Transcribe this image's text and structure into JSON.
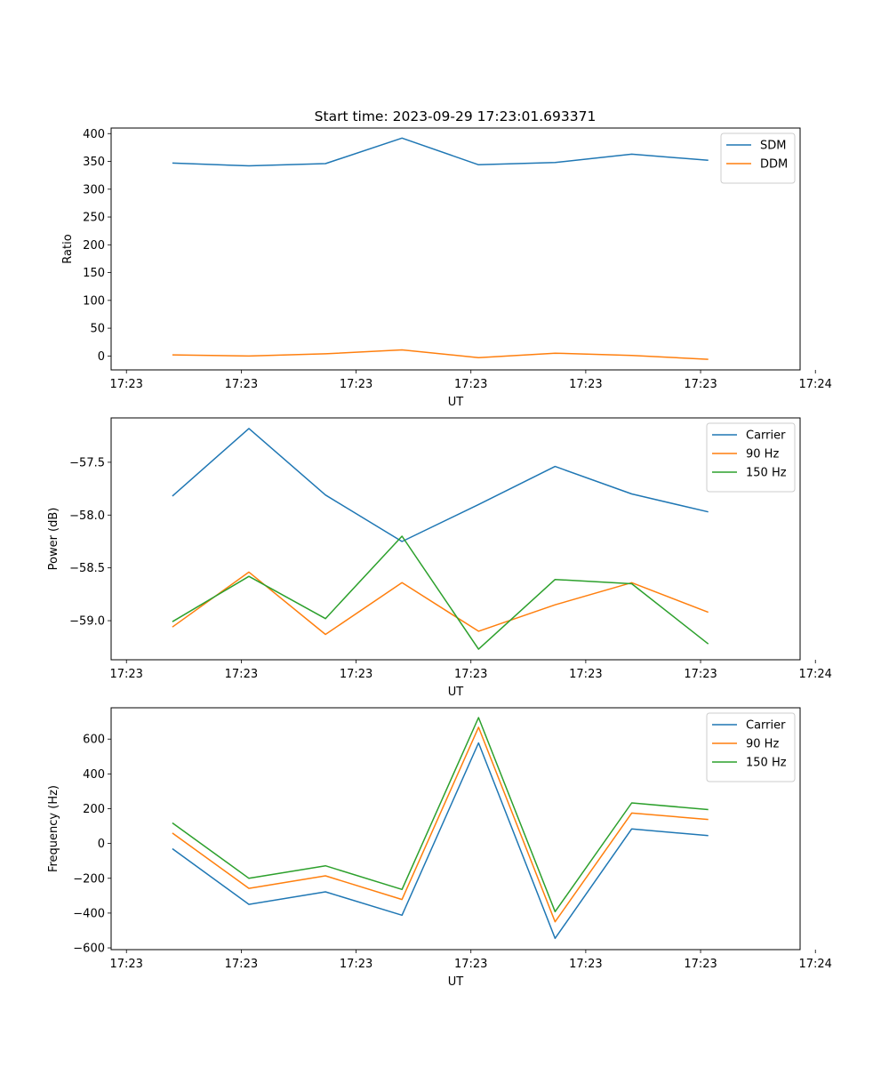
{
  "figure_title": "Start time: 2023-09-29 17:23:01.693371",
  "chart_data": [
    {
      "type": "line",
      "title": "Start time: 2023-09-29 17:23:01.693371",
      "xlabel": "UT",
      "ylabel": "Ratio",
      "x": [
        1,
        2,
        3,
        4,
        5,
        6,
        7,
        8
      ],
      "xlim": [
        0.2,
        9.2
      ],
      "x_ticks": [
        0.4,
        1.9,
        3.4,
        4.9,
        6.4,
        7.9,
        9.4
      ],
      "x_tick_labels": [
        "17:23",
        "17:23",
        "17:23",
        "17:23",
        "17:23",
        "17:23",
        "17:24"
      ],
      "ylim": [
        -25,
        410
      ],
      "y_ticks": [
        0,
        50,
        100,
        150,
        200,
        250,
        300,
        350,
        400
      ],
      "y_tick_labels": [
        "0",
        "50",
        "100",
        "150",
        "200",
        "250",
        "300",
        "350",
        "400"
      ],
      "legend_position": "top-right",
      "series": [
        {
          "name": "SDM",
          "color": "#1f77b4",
          "values": [
            347,
            342,
            346,
            392,
            344,
            348,
            363,
            352
          ]
        },
        {
          "name": "DDM",
          "color": "#ff7f0e",
          "values": [
            2,
            0,
            4,
            11,
            -3,
            5,
            1,
            -6
          ]
        }
      ]
    },
    {
      "type": "line",
      "xlabel": "UT",
      "ylabel": "Power (dB)",
      "x": [
        1,
        2,
        3,
        4,
        5,
        6,
        7,
        8
      ],
      "xlim": [
        0.2,
        9.2
      ],
      "x_ticks": [
        0.4,
        1.9,
        3.4,
        4.9,
        6.4,
        7.9,
        9.4
      ],
      "x_tick_labels": [
        "17:23",
        "17:23",
        "17:23",
        "17:23",
        "17:23",
        "17:23",
        "17:24"
      ],
      "ylim": [
        -59.37,
        -57.08
      ],
      "y_ticks": [
        -59.0,
        -58.5,
        -58.0,
        -57.5
      ],
      "y_tick_labels": [
        "−59.0",
        "−58.5",
        "−58.0",
        "−57.5"
      ],
      "legend_position": "top-right",
      "series": [
        {
          "name": "Carrier",
          "color": "#1f77b4",
          "values": [
            -57.82,
            -57.18,
            -57.81,
            -58.25,
            -57.9,
            -57.54,
            -57.8,
            -57.97
          ]
        },
        {
          "name": "90 Hz",
          "color": "#ff7f0e",
          "values": [
            -59.06,
            -58.54,
            -59.13,
            -58.64,
            -59.1,
            -58.85,
            -58.64,
            -58.92
          ]
        },
        {
          "name": "150 Hz",
          "color": "#2ca02c",
          "values": [
            -59.01,
            -58.58,
            -58.98,
            -58.2,
            -59.27,
            -58.61,
            -58.65,
            -59.22
          ]
        }
      ]
    },
    {
      "type": "line",
      "xlabel": "UT",
      "ylabel": "Frequency (Hz)",
      "x": [
        1,
        2,
        3,
        4,
        5,
        6,
        7,
        8
      ],
      "xlim": [
        0.2,
        9.2
      ],
      "x_ticks": [
        0.4,
        1.9,
        3.4,
        4.9,
        6.4,
        7.9,
        9.4
      ],
      "x_tick_labels": [
        "17:23",
        "17:23",
        "17:23",
        "17:23",
        "17:23",
        "17:23",
        "17:24"
      ],
      "ylim": [
        -610,
        780
      ],
      "y_ticks": [
        -600,
        -400,
        -200,
        0,
        200,
        400,
        600
      ],
      "y_tick_labels": [
        "−600",
        "−400",
        "−200",
        "0",
        "200",
        "400",
        "600"
      ],
      "legend_position": "top-right",
      "series": [
        {
          "name": "Carrier",
          "color": "#1f77b4",
          "values": [
            -30,
            -350,
            -278,
            -412,
            578,
            -545,
            84,
            45
          ]
        },
        {
          "name": "90 Hz",
          "color": "#ff7f0e",
          "values": [
            60,
            -258,
            -186,
            -322,
            668,
            -450,
            175,
            138
          ]
        },
        {
          "name": "150 Hz",
          "color": "#2ca02c",
          "values": [
            118,
            -200,
            -128,
            -264,
            724,
            -392,
            233,
            195
          ]
        }
      ]
    }
  ]
}
